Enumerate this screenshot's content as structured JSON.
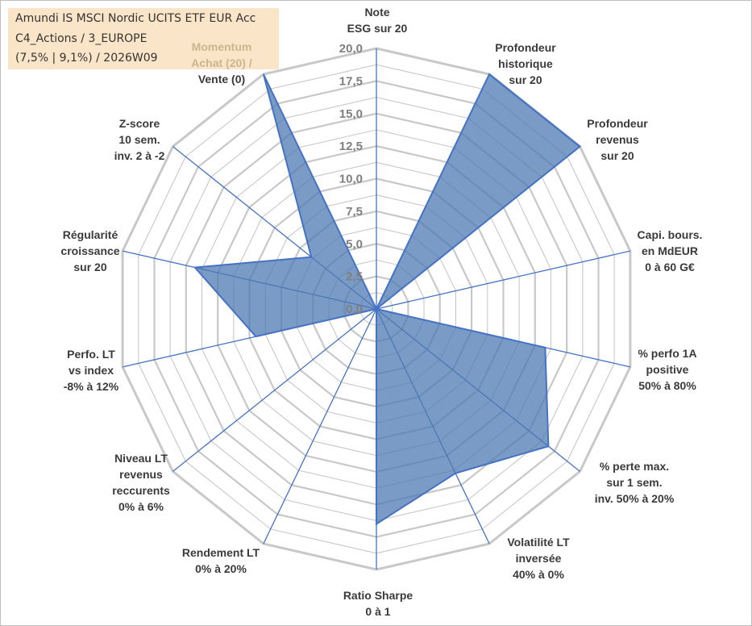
{
  "title": {
    "line1": "Amundi IS MSCI Nordic UCITS ETF EUR Acc",
    "line2": "C4_Actions / 3_EUROPE",
    "line3": "(7,5% | 9,1%) / 2026W09"
  },
  "chart_data": {
    "type": "radar",
    "rmin": 0,
    "rmax": 20,
    "ticks": [
      "0,0",
      "2,5",
      "5,0",
      "7,5",
      "10,0",
      "12,5",
      "15,0",
      "17,5",
      "20,0"
    ],
    "axes": [
      "Note\nESG sur 20",
      "Profondeur\nhistorique\nsur 20",
      "Profondeur\nrevenus\nsur 20",
      "Capi. bours.\nen MdEUR\n0 à 60 G€",
      "% perfo 1A\npositive\n50% à 80%",
      "% perte max.\nsur 1 sem.\ninv. 50% à 20%",
      "Volatilité LT\ninversée\n40% à 0%",
      "Ratio Sharpe\n0 à 1",
      "Rendement LT\n0% à 20%",
      "Niveau LT\nrevenus\nreccurents\n0% à 6%",
      "Perfo. LT\nvs index\n-8% à 12%",
      "Régularité\ncroissance\nsur 20",
      "Z-score\n10 sem.\ninv. 2 à -2",
      "Momentum\nAchat (20) /\nVente (0)"
    ],
    "values": [
      0,
      20,
      20,
      0,
      13.3,
      16.9,
      14,
      16.5,
      0,
      0,
      9.5,
      14.3,
      6.4,
      20
    ],
    "series_name": "Amundi IS MSCI Nordic UCITS ETF EUR Acc",
    "colors": {
      "fill": "#4e79b3",
      "stroke": "#4472c4",
      "grid": "#c8c8c8",
      "spoke": "#4472c4",
      "momentum_label": "#c9b78c"
    }
  }
}
